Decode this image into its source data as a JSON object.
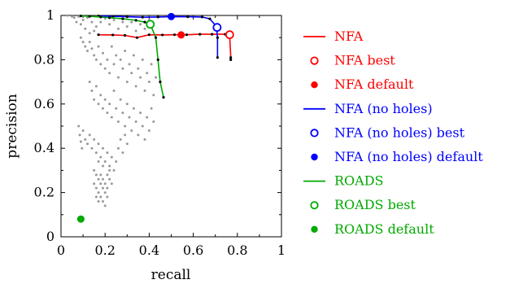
{
  "chart_data": {
    "type": "line",
    "title": "",
    "xlabel": "recall",
    "ylabel": "precision",
    "xlim": [
      0,
      1
    ],
    "ylim": [
      0,
      1
    ],
    "grid": false,
    "legend_placement": "right",
    "xticks": [
      0,
      0.2,
      0.4,
      0.6,
      0.8,
      1
    ],
    "xtick_labels": [
      "0",
      "0.2",
      "0.4",
      "0.6",
      "0.8",
      "1"
    ],
    "yticks": [
      0,
      0.2,
      0.4,
      0.6,
      0.8,
      1
    ],
    "ytick_labels": [
      "0",
      "0.2",
      "0.4",
      "0.6",
      "0.8",
      "1"
    ],
    "series": [
      {
        "name": "NFA",
        "color": "#ff0000",
        "points": [
          [
            0.17,
            0.913
          ],
          [
            0.235,
            0.912
          ],
          [
            0.29,
            0.91
          ],
          [
            0.345,
            0.9
          ],
          [
            0.4,
            0.913
          ],
          [
            0.46,
            0.912
          ],
          [
            0.515,
            0.913
          ],
          [
            0.57,
            0.913
          ],
          [
            0.63,
            0.915
          ],
          [
            0.685,
            0.915
          ],
          [
            0.745,
            0.915
          ],
          [
            0.765,
            0.912
          ],
          [
            0.77,
            0.81
          ],
          [
            0.77,
            0.8
          ]
        ],
        "best": {
          "name": "NFA best",
          "point": [
            0.765,
            0.913
          ]
        },
        "default": {
          "name": "NFA default",
          "point": [
            0.545,
            0.912
          ]
        }
      },
      {
        "name": "NFA (no holes)",
        "color": "#0000ff",
        "points": [
          [
            0.17,
            0.998
          ],
          [
            0.235,
            0.996
          ],
          [
            0.3,
            0.994
          ],
          [
            0.37,
            0.992
          ],
          [
            0.44,
            0.993
          ],
          [
            0.5,
            0.995
          ],
          [
            0.575,
            0.994
          ],
          [
            0.64,
            0.993
          ],
          [
            0.675,
            0.985
          ],
          [
            0.705,
            0.95
          ],
          [
            0.71,
            0.9
          ],
          [
            0.71,
            0.81
          ]
        ],
        "best": {
          "name": "NFA (no holes) best",
          "point": [
            0.708,
            0.946
          ]
        },
        "default": {
          "name": "NFA (no holes) default",
          "point": [
            0.5,
            0.995
          ]
        }
      },
      {
        "name": "ROADS",
        "color": "#00aa00",
        "points": [
          [
            0.09,
            0.998
          ],
          [
            0.13,
            0.996
          ],
          [
            0.18,
            0.993
          ],
          [
            0.22,
            0.99
          ],
          [
            0.28,
            0.985
          ],
          [
            0.34,
            0.978
          ],
          [
            0.38,
            0.97
          ],
          [
            0.405,
            0.96
          ],
          [
            0.43,
            0.9
          ],
          [
            0.44,
            0.8
          ],
          [
            0.45,
            0.7
          ],
          [
            0.465,
            0.63
          ]
        ],
        "best": {
          "name": "ROADS best",
          "point": [
            0.405,
            0.96
          ]
        },
        "default": {
          "name": "ROADS default",
          "point": [
            0.09,
            0.08
          ]
        }
      }
    ],
    "background_points": {
      "color": "#999999",
      "points": [
        [
          0.03,
          1.0
        ],
        [
          0.05,
          0.995
        ],
        [
          0.06,
          0.99
        ],
        [
          0.07,
          0.97
        ],
        [
          0.08,
          0.995
        ],
        [
          0.09,
          0.96
        ],
        [
          0.1,
          0.98
        ],
        [
          0.11,
          0.94
        ],
        [
          0.12,
          0.99
        ],
        [
          0.13,
          0.92
        ],
        [
          0.14,
          0.97
        ],
        [
          0.15,
          0.93
        ],
        [
          0.16,
          0.95
        ],
        [
          0.18,
          0.97
        ],
        [
          0.2,
          0.99
        ],
        [
          0.22,
          0.96
        ],
        [
          0.24,
          0.98
        ],
        [
          0.26,
          0.94
        ],
        [
          0.28,
          0.97
        ],
        [
          0.3,
          0.95
        ],
        [
          0.32,
          0.97
        ],
        [
          0.34,
          0.93
        ],
        [
          0.36,
          0.96
        ],
        [
          0.38,
          0.94
        ],
        [
          0.4,
          0.98
        ],
        [
          0.09,
          0.9
        ],
        [
          0.1,
          0.88
        ],
        [
          0.11,
          0.86
        ],
        [
          0.12,
          0.84
        ],
        [
          0.13,
          0.88
        ],
        [
          0.14,
          0.85
        ],
        [
          0.15,
          0.82
        ],
        [
          0.16,
          0.8
        ],
        [
          0.17,
          0.86
        ],
        [
          0.18,
          0.78
        ],
        [
          0.19,
          0.83
        ],
        [
          0.2,
          0.76
        ],
        [
          0.21,
          0.8
        ],
        [
          0.22,
          0.74
        ],
        [
          0.23,
          0.86
        ],
        [
          0.24,
          0.78
        ],
        [
          0.25,
          0.82
        ],
        [
          0.26,
          0.72
        ],
        [
          0.27,
          0.8
        ],
        [
          0.28,
          0.76
        ],
        [
          0.29,
          0.84
        ],
        [
          0.3,
          0.7
        ],
        [
          0.31,
          0.78
        ],
        [
          0.32,
          0.74
        ],
        [
          0.33,
          0.82
        ],
        [
          0.34,
          0.68
        ],
        [
          0.35,
          0.76
        ],
        [
          0.36,
          0.72
        ],
        [
          0.37,
          0.8
        ],
        [
          0.38,
          0.66
        ],
        [
          0.39,
          0.74
        ],
        [
          0.4,
          0.7
        ],
        [
          0.41,
          0.78
        ],
        [
          0.42,
          0.64
        ],
        [
          0.43,
          0.72
        ],
        [
          0.13,
          0.7
        ],
        [
          0.14,
          0.66
        ],
        [
          0.15,
          0.62
        ],
        [
          0.16,
          0.68
        ],
        [
          0.17,
          0.6
        ],
        [
          0.18,
          0.64
        ],
        [
          0.19,
          0.58
        ],
        [
          0.2,
          0.62
        ],
        [
          0.21,
          0.56
        ],
        [
          0.22,
          0.6
        ],
        [
          0.23,
          0.54
        ],
        [
          0.24,
          0.66
        ],
        [
          0.25,
          0.58
        ],
        [
          0.26,
          0.52
        ],
        [
          0.27,
          0.62
        ],
        [
          0.28,
          0.56
        ],
        [
          0.29,
          0.5
        ],
        [
          0.3,
          0.6
        ],
        [
          0.31,
          0.54
        ],
        [
          0.32,
          0.48
        ],
        [
          0.33,
          0.58
        ],
        [
          0.34,
          0.52
        ],
        [
          0.35,
          0.46
        ],
        [
          0.36,
          0.56
        ],
        [
          0.37,
          0.5
        ],
        [
          0.38,
          0.44
        ],
        [
          0.39,
          0.54
        ],
        [
          0.4,
          0.48
        ],
        [
          0.41,
          0.58
        ],
        [
          0.42,
          0.52
        ],
        [
          0.08,
          0.5
        ],
        [
          0.085,
          0.46
        ],
        [
          0.09,
          0.43
        ],
        [
          0.095,
          0.4
        ],
        [
          0.1,
          0.48
        ],
        [
          0.11,
          0.44
        ],
        [
          0.12,
          0.42
        ],
        [
          0.13,
          0.46
        ],
        [
          0.14,
          0.4
        ],
        [
          0.15,
          0.44
        ],
        [
          0.16,
          0.38
        ],
        [
          0.17,
          0.42
        ],
        [
          0.18,
          0.36
        ],
        [
          0.19,
          0.4
        ],
        [
          0.2,
          0.34
        ],
        [
          0.21,
          0.38
        ],
        [
          0.22,
          0.32
        ],
        [
          0.23,
          0.36
        ],
        [
          0.24,
          0.3
        ],
        [
          0.25,
          0.34
        ],
        [
          0.26,
          0.4
        ],
        [
          0.27,
          0.44
        ],
        [
          0.28,
          0.38
        ],
        [
          0.29,
          0.46
        ],
        [
          0.3,
          0.42
        ],
        [
          0.15,
          0.3
        ],
        [
          0.16,
          0.28
        ],
        [
          0.17,
          0.26
        ],
        [
          0.18,
          0.24
        ],
        [
          0.19,
          0.22
        ],
        [
          0.2,
          0.2
        ],
        [
          0.21,
          0.18
        ],
        [
          0.16,
          0.22
        ],
        [
          0.17,
          0.2
        ],
        [
          0.18,
          0.18
        ],
        [
          0.19,
          0.16
        ],
        [
          0.2,
          0.14
        ],
        [
          0.15,
          0.24
        ],
        [
          0.17,
          0.16
        ],
        [
          0.18,
          0.28
        ],
        [
          0.19,
          0.26
        ],
        [
          0.2,
          0.24
        ],
        [
          0.21,
          0.22
        ],
        [
          0.22,
          0.26
        ],
        [
          0.22,
          0.3
        ],
        [
          0.23,
          0.24
        ],
        [
          0.21,
          0.28
        ],
        [
          0.19,
          0.32
        ],
        [
          0.17,
          0.34
        ],
        [
          0.16,
          0.18
        ]
      ]
    }
  }
}
